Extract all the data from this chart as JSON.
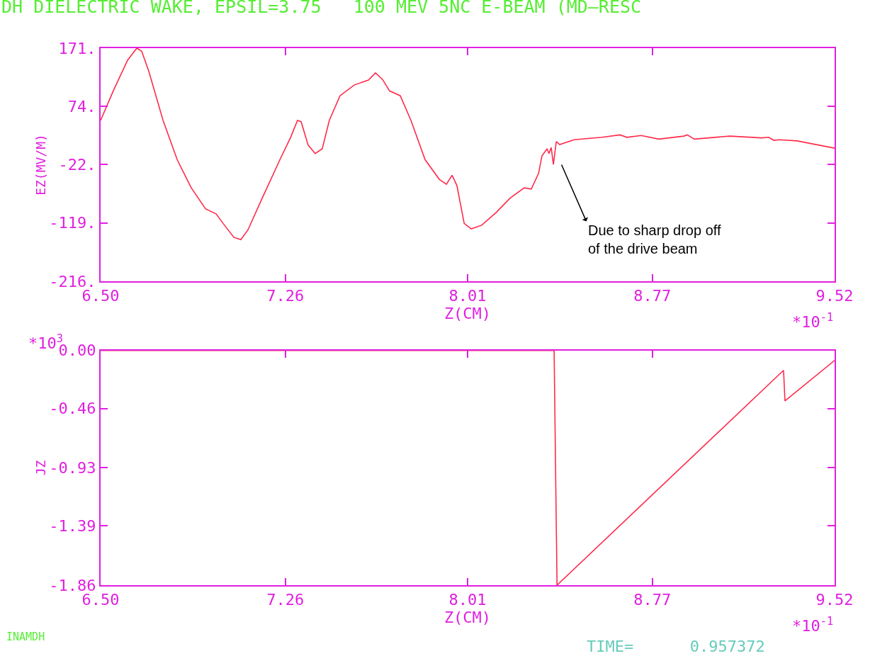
{
  "chart_data": [
    {
      "type": "line",
      "title": "DH DIELECTRIC WAKE, EPSIL=3.75   100 MEV 5NC E-BEAM (MD—RESC",
      "xlabel": "Z(CM)",
      "ylabel": "EZ(MV/M)",
      "x": [
        6.5,
        6.552,
        6.611,
        6.649,
        6.669,
        6.698,
        6.757,
        6.815,
        6.873,
        6.932,
        6.975,
        7.004,
        7.048,
        7.077,
        7.106,
        7.165,
        7.238,
        7.281,
        7.31,
        7.325,
        7.354,
        7.383,
        7.412,
        7.441,
        7.485,
        7.544,
        7.602,
        7.631,
        7.66,
        7.689,
        7.733,
        7.777,
        7.835,
        7.894,
        7.923,
        7.946,
        7.966,
        7.996,
        8.025,
        8.068,
        8.127,
        8.185,
        8.243,
        8.272,
        8.302,
        8.316,
        8.337,
        8.345,
        8.354,
        8.363,
        8.375,
        8.389,
        8.448,
        8.564,
        8.637,
        8.666,
        8.724,
        8.797,
        8.9,
        8.914,
        8.943,
        9.089,
        9.22,
        9.249,
        9.27,
        9.293,
        9.366,
        9.52
      ],
      "series": [
        {
          "color": "#ff2a4a",
          "values": [
            51,
            100,
            151,
            171,
            166,
            133,
            51,
            -14,
            -61,
            -96,
            -104,
            -120,
            -143,
            -147,
            -131,
            -78,
            -14,
            22,
            51,
            49,
            10,
            -4,
            4,
            51,
            92,
            110,
            118,
            130,
            119,
            100,
            92,
            51,
            -14,
            -47,
            -55,
            -40,
            -57,
            -120,
            -129,
            -123,
            -102,
            -78,
            -61,
            -63,
            -37,
            -8,
            4,
            -4,
            6,
            -22,
            16,
            11,
            19,
            23,
            27,
            23,
            26,
            20,
            25,
            27,
            20,
            25,
            22,
            23,
            18,
            19,
            17,
            5
          ]
        }
      ],
      "xlim": [
        6.5,
        9.52
      ],
      "ylim": [
        -216,
        171
      ],
      "xticks": [
        {
          "value": 6.5,
          "label": "6.50"
        },
        7.26,
        8.01,
        8.77,
        9.52
      ],
      "yticks": [
        {
          "value": -216,
          "label": "-216."
        },
        {
          "value": -119,
          "label": "-119."
        },
        {
          "value": -22,
          "label": "-22."
        },
        {
          "value": 74,
          "label": "74."
        },
        {
          "value": 171,
          "label": "171."
        }
      ],
      "annotations": [
        "*10$^{-1}$",
        "Due to sharp drop off\nof the drive beam"
      ]
    },
    {
      "type": "line",
      "xlabel": "Z(CM)",
      "ylabel": "JZ",
      "x": [
        6.5,
        8.366,
        8.378,
        9.31,
        9.316,
        9.52
      ],
      "series": [
        {
          "color": "#ff2a4a",
          "values": [
            0,
            0,
            -1.86,
            -0.157,
            -0.4,
            -0.079
          ]
        }
      ],
      "xlim": [
        6.5,
        9.52
      ],
      "ylim": [
        -1.86,
        0
      ],
      "xticks": [
        {
          "value": 6.5,
          "label": "6.50"
        },
        7.26,
        8.01,
        8.77,
        9.52
      ],
      "yticks": [
        -1.86,
        -1.39,
        -0.93,
        -0.46,
        {
          "value": 0,
          "label": "0.00"
        }
      ],
      "annotations": [
        "*10$^{3}$",
        "*10$^{-1}$",
        "INAMDH",
        "TIME=      0.957372"
      ]
    }
  ]
}
